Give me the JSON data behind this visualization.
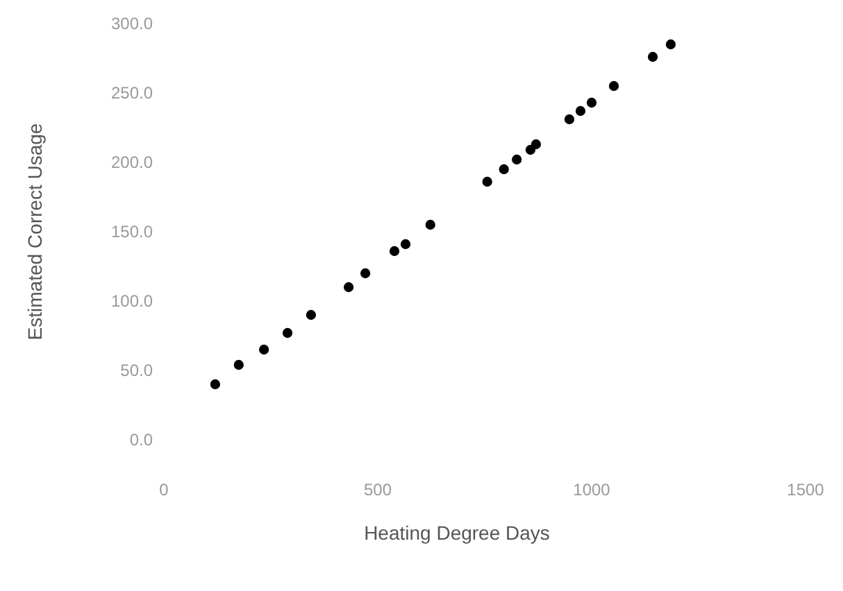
{
  "chart_data": {
    "type": "scatter",
    "xlabel": "Heating Degree Days",
    "ylabel": "Estimated Correct Usage",
    "x": [
      120,
      175,
      234,
      289,
      344,
      432,
      471,
      539,
      565,
      623,
      756,
      795,
      825,
      857,
      870,
      948,
      974,
      1000,
      1052,
      1143,
      1185
    ],
    "series": [
      {
        "color": "#000000",
        "values": [
          40,
          54,
          65,
          77,
          90,
          110,
          120,
          136,
          141,
          155,
          186,
          195,
          202,
          209,
          213,
          231,
          237,
          243,
          255,
          276,
          285
        ]
      }
    ],
    "xlim": [
      0,
      1500
    ],
    "xticks": [
      0,
      500,
      1000,
      1500
    ],
    "ylim": [
      0,
      300
    ],
    "yticks": [
      {
        "value": 0,
        "label": "0.0"
      },
      {
        "value": 50,
        "label": "50.0"
      },
      {
        "value": 100,
        "label": "100.0"
      },
      {
        "value": 150,
        "label": "150.0"
      },
      {
        "value": 200,
        "label": "200.0"
      },
      {
        "value": 250,
        "label": "250.0"
      },
      {
        "value": 300,
        "label": "300.0"
      }
    ],
    "grid": false,
    "marker": "circle"
  }
}
